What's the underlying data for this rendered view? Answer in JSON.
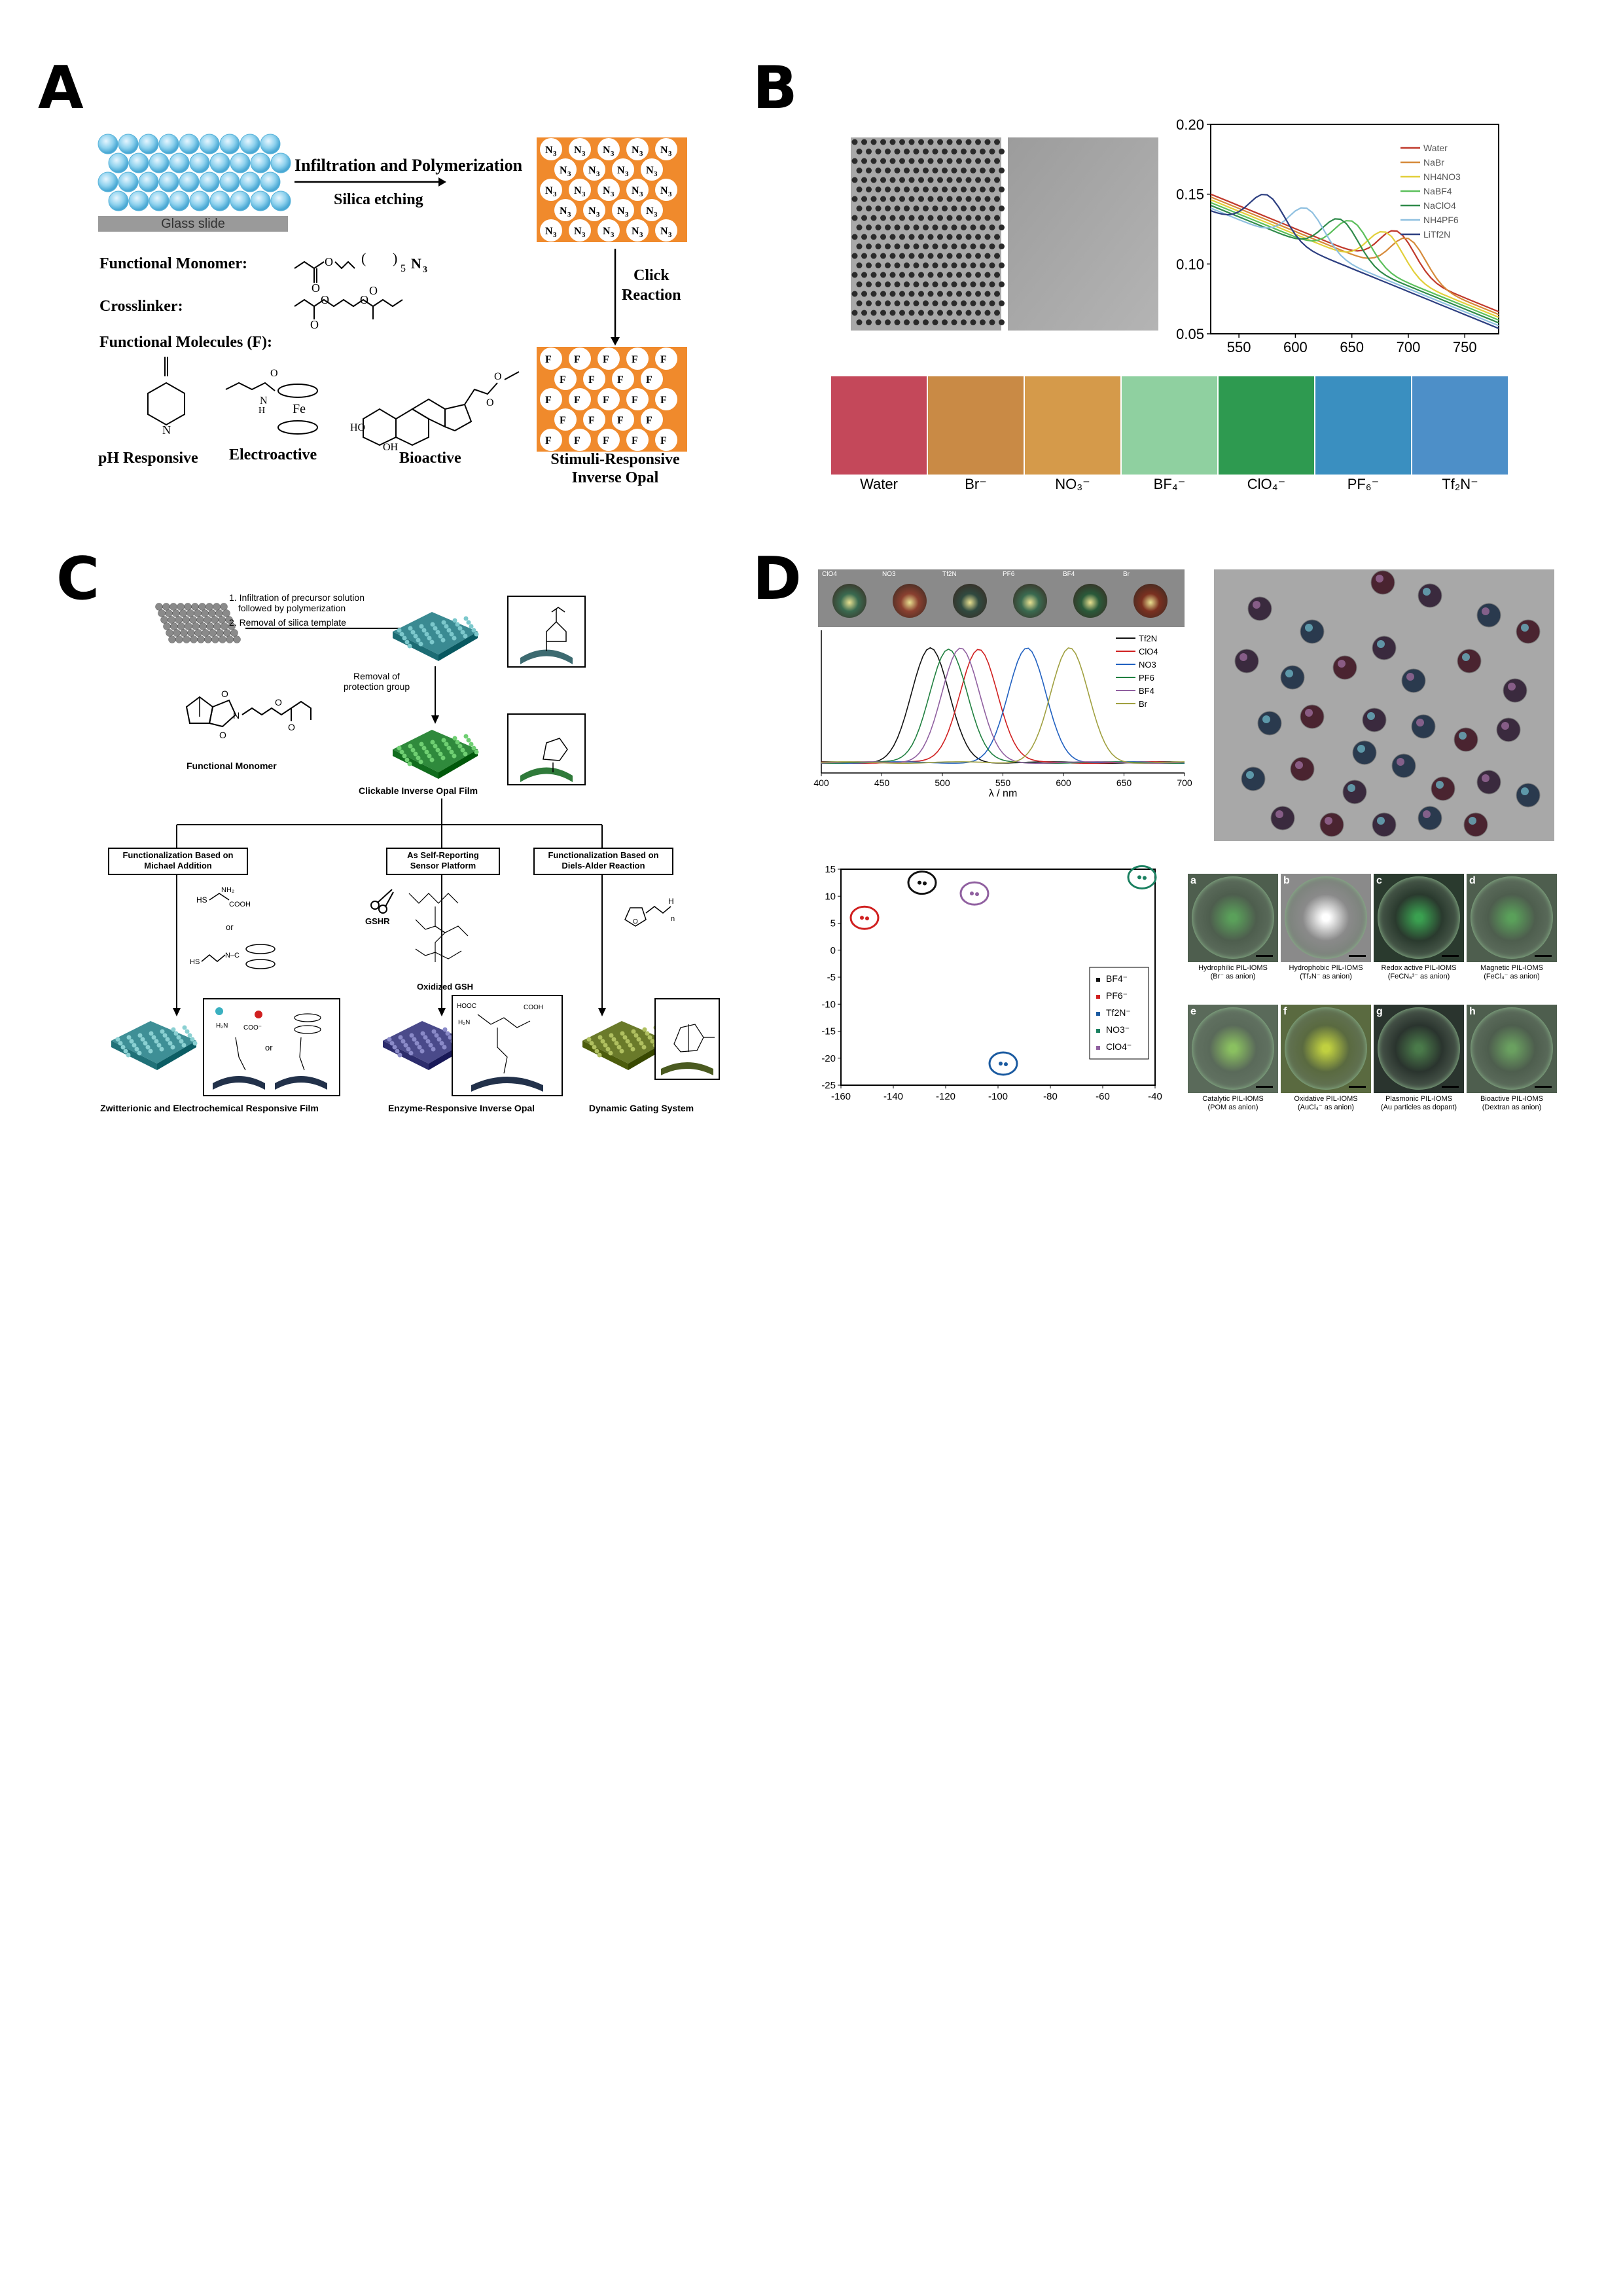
{
  "panels": {
    "a": {
      "letter": "A",
      "glass": "Glass slide",
      "step1a": "Infiltration and Polymerization",
      "step1b": "Silica etching",
      "monomer": "Functional Monomer:",
      "crosslinker": "Crosslinker:",
      "molecules": "Functional  Molecules (F):",
      "click1": "Click",
      "click2": "Reaction",
      "ph": "pH Responsive",
      "electro": "Electroactive",
      "bio": "Bioactive",
      "result1": "Stimuli-Responsive",
      "result2": "Inverse Opal",
      "n3": "N",
      "n3sub": "3",
      "f": "F",
      "fe": "Fe",
      "sub5": "5"
    },
    "b": {
      "letter": "B",
      "ylim": [
        0.05,
        0.2
      ],
      "yticks": [
        "0.20",
        "0.15",
        "0.10",
        "0.05"
      ],
      "xticks": [
        "550",
        "600",
        "650",
        "700",
        "750"
      ],
      "legend": [
        "Water",
        "NaBr",
        "NH4NO3",
        "NaBF4",
        "NaClO4",
        "NH4PF6",
        "LiTf2N"
      ],
      "legend_colors": [
        "#c0392b",
        "#d68a3a",
        "#e2cf3a",
        "#5bbf5b",
        "#2f8a4a",
        "#8fc0e0",
        "#2c3e80"
      ],
      "swatch_labels": [
        "Water",
        "Br⁻",
        "NO₃⁻",
        "BF₄⁻",
        "ClO₄⁻",
        "PF₆⁻",
        "Tf₂N⁻"
      ],
      "swatch_colors": [
        "#c4485a",
        "#c98a45",
        "#d59a4a",
        "#8fd0a0",
        "#2e9a50",
        "#3a8fc0",
        "#4d8fc8"
      ]
    },
    "c": {
      "letter": "C",
      "step1": "1. Infiltration of precursor solution",
      "step1b": "followed by polymerization",
      "step2": "2. Removal of silica template",
      "removal1": "Removal of",
      "removal2": "protection group",
      "monomer": "Functional Monomer",
      "clickable": "Clickable Inverse Opal Film",
      "box1a": "Functionalization Based on",
      "box1b": "Michael Addition",
      "box2a": "As Self-Reporting",
      "box2b": "Sensor Platform",
      "box3a": "Functionalization Based on",
      "box3b": "Diels-Alder Reaction",
      "gshr": "GSHR",
      "oxgsh": "Oxidized GSH",
      "or1": "or",
      "or2": "or",
      "res1": "Zwitterionic and Electrochemical  Responsive Film",
      "res2": "Enzyme-Responsive Inverse Opal",
      "res3": "Dynamic Gating System"
    },
    "d": {
      "letter": "D",
      "spectra_xlabel": "λ / nm",
      "spectra_xticks": [
        "400",
        "450",
        "500",
        "550",
        "600",
        "650",
        "700"
      ],
      "spectra_legend": [
        "Tf2N",
        "ClO4",
        "NO3",
        "PF6",
        "BF4",
        "Br"
      ],
      "spectra_colors": [
        "#111111",
        "#d02020",
        "#2060c0",
        "#208040",
        "#9060a0",
        "#a0a040"
      ],
      "sphere_labels": [
        "ClO4",
        "NO3",
        "Tf2N",
        "PF6",
        "BF4",
        "Br"
      ],
      "scatter_xticks": [
        "-160",
        "-140",
        "-120",
        "-100",
        "-80",
        "-60",
        "-40"
      ],
      "scatter_yticks": [
        "15",
        "10",
        "5",
        "0",
        "-5",
        "-10",
        "-15",
        "-20",
        "-25"
      ],
      "scatter_legend": [
        "BF4⁻",
        "PF6⁻",
        "Tf2N⁻",
        "NO3⁻",
        "ClO4⁻"
      ],
      "scatter_colors": [
        "#111111",
        "#d02020",
        "#1a5aa0",
        "#1a8060",
        "#9060a0"
      ],
      "micro": [
        {
          "letter": "a",
          "line1": "Hydrophilic PIL-IOMS",
          "line2": "(Br⁻ as anion)"
        },
        {
          "letter": "b",
          "line1": "Hydrophobic PIL-IOMS",
          "line2": "(Tf₂N⁻ as anion)"
        },
        {
          "letter": "c",
          "line1": "Redox active PIL-IOMS",
          "line2": "(FeCN₆³⁻ as anion)"
        },
        {
          "letter": "d",
          "line1": "Magnetic PIL-IOMS",
          "line2": "(FeCl₄⁻ as anion)"
        },
        {
          "letter": "e",
          "line1": "Catalytic PIL-IOMS",
          "line2": "(POM as anion)"
        },
        {
          "letter": "f",
          "line1": "Oxidative PIL-IOMS",
          "line2": "(AuCl₄⁻ as anion)"
        },
        {
          "letter": "g",
          "line1": "Plasmonic PIL-IOMS",
          "line2": "(Au particles as dopant)"
        },
        {
          "letter": "h",
          "line1": "Bioactive PIL-IOMS",
          "line2": "(Dextran as anion)"
        }
      ]
    }
  }
}
